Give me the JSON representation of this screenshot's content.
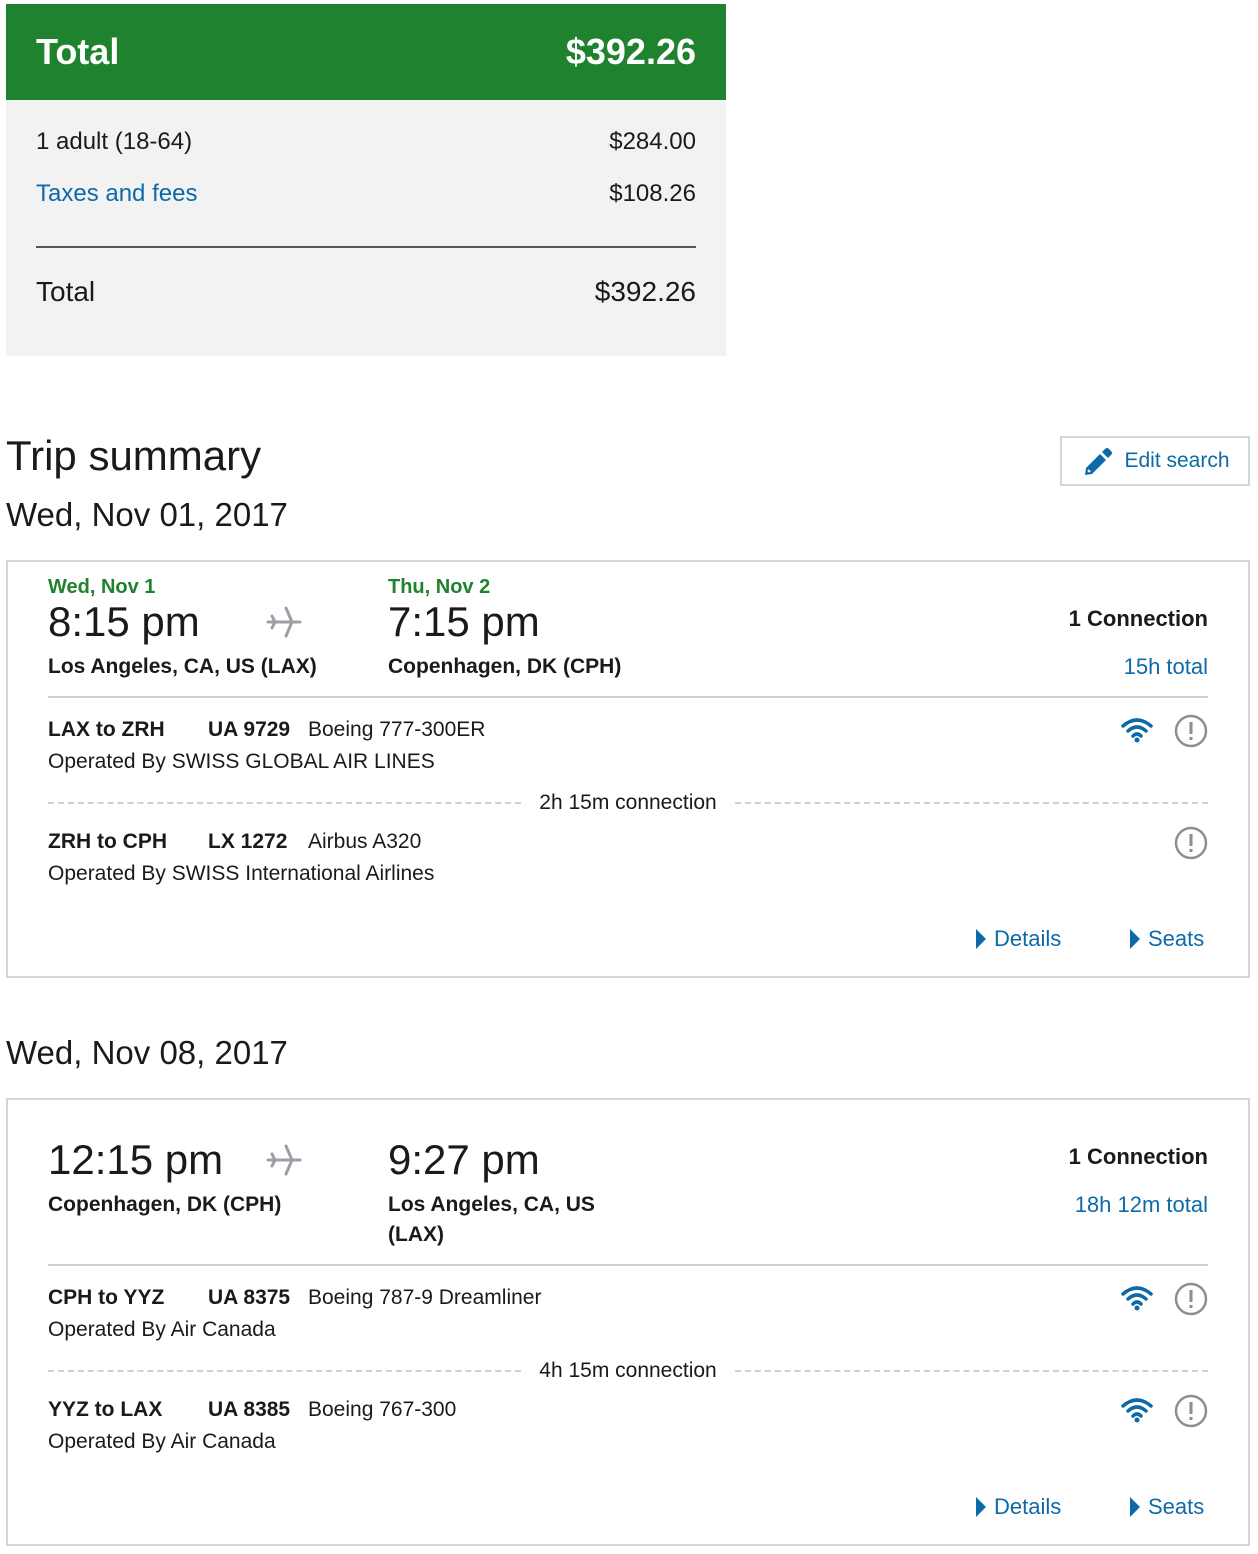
{
  "price_summary": {
    "header_label": "Total",
    "header_amount": "$392.26",
    "rows": [
      {
        "label": "1 adult (18-64)",
        "amount": "$284.00"
      },
      {
        "label": "Taxes and fees",
        "amount": "$108.26"
      }
    ],
    "total_label": "Total",
    "total_amount": "$392.26"
  },
  "trip_summary": {
    "title": "Trip summary",
    "edit_label": "Edit search"
  },
  "flights": [
    {
      "date_heading": "Wed, Nov 01, 2017",
      "depart_day": "Wed, Nov 1",
      "depart_time": "8:15 pm",
      "depart_city": "Los Angeles, CA, US (LAX)",
      "arrive_day": "Thu, Nov 2",
      "arrive_time": "7:15 pm",
      "arrive_city": "Copenhagen, DK (CPH)",
      "connections": "1 Connection",
      "duration": "15h total",
      "segments": [
        {
          "route": "LAX to ZRH",
          "flight": "UA 9729",
          "aircraft": "Boeing 777-300ER",
          "operator": "Operated By SWISS GLOBAL AIR LINES",
          "wifi": true
        },
        {
          "route": "ZRH to CPH",
          "flight": "LX 1272",
          "aircraft": "Airbus A320",
          "operator": "Operated By SWISS International Airlines",
          "wifi": false
        }
      ],
      "connection_label": "2h 15m connection",
      "details_label": "Details",
      "seats_label": "Seats"
    },
    {
      "date_heading": "Wed, Nov 08, 2017",
      "depart_time": "12:15 pm",
      "depart_city": "Copenhagen, DK (CPH)",
      "arrive_time": "9:27 pm",
      "arrive_city": "Los Angeles, CA, US (LAX)",
      "connections": "1 Connection",
      "duration": "18h 12m total",
      "segments": [
        {
          "route": "CPH to YYZ",
          "flight": "UA 8375",
          "aircraft": "Boeing 787-9 Dreamliner",
          "operator": "Operated By Air Canada",
          "wifi": true
        },
        {
          "route": "YYZ to LAX",
          "flight": "UA 8385",
          "aircraft": "Boeing 767-300",
          "operator": "Operated By Air Canada",
          "wifi": true
        }
      ],
      "connection_label": "4h 15m connection",
      "details_label": "Details",
      "seats_label": "Seats"
    }
  ],
  "colors": {
    "brand_green": "#1f822f",
    "link_blue": "#0d6aa8",
    "panel_gray": "#f2f2f2"
  },
  "icons": [
    "plane-icon",
    "wifi-icon",
    "alert-icon",
    "pencil-icon",
    "caret-right-icon"
  ]
}
